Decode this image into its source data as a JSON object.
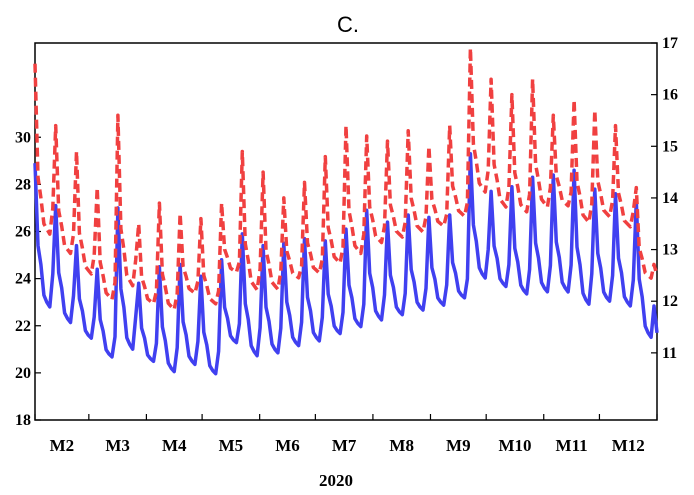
{
  "chart_data": {
    "type": "line",
    "title": "C.",
    "xlabel": "2020",
    "x_ticks": [
      "M2",
      "M3",
      "M4",
      "M5",
      "M6",
      "M7",
      "M8",
      "M9",
      "M10",
      "M11",
      "M12"
    ],
    "xlim_days": [
      31,
      366
    ],
    "left_axis": {
      "ticks": [
        "18",
        "20",
        "22",
        "24",
        "26",
        "28",
        "30"
      ],
      "range": [
        18,
        34
      ]
    },
    "right_axis": {
      "ticks": [
        "11",
        "12",
        "13",
        "14",
        "15",
        "16",
        "17"
      ],
      "range": [
        9.7,
        17
      ]
    },
    "grid": false,
    "series": [
      {
        "axis": "left",
        "color": "#4040f0",
        "style": "solid",
        "pattern": [
          28.9,
          25.4,
          24.6,
          23.3,
          23.0,
          22.8,
          24.2
        ],
        "peaks": [
          28.9,
          27.1,
          25.4,
          24.4,
          27.0,
          23.8,
          24.5,
          24.6,
          24.1,
          24.8,
          25.9,
          25.4,
          25.5,
          25.7,
          25.6,
          26.1,
          26.9,
          26.4,
          26.7,
          26.6,
          26.7,
          29.3,
          27.7,
          27.9,
          28.3,
          28.4,
          28.6,
          27.8,
          27.6,
          27.3
        ],
        "troughs": [
          23.0,
          22.3,
          21.6,
          20.8,
          21.2,
          20.6,
          20.2,
          20.5,
          20.1,
          21.4,
          20.9,
          21.0,
          21.3,
          21.5,
          21.8,
          22.1,
          22.4,
          22.6,
          22.8,
          23.0,
          23.3,
          24.2,
          23.8,
          23.5,
          23.6,
          23.6,
          23.1,
          23.2,
          23.0,
          21.7
        ]
      },
      {
        "axis": "right",
        "color": "#f04040",
        "style": "dashed",
        "pattern": [
          16.6,
          14.4,
          14.0,
          13.5,
          13.4,
          13.3,
          13.8
        ],
        "peaks": [
          16.6,
          15.4,
          14.9,
          14.2,
          15.6,
          13.5,
          13.9,
          13.7,
          13.6,
          13.9,
          14.9,
          14.5,
          14.0,
          14.3,
          14.8,
          15.4,
          15.2,
          15.1,
          15.3,
          15.0,
          15.4,
          16.9,
          16.3,
          16.0,
          16.3,
          15.6,
          15.9,
          15.7,
          15.4,
          14.2
        ],
        "troughs": [
          13.4,
          13.0,
          12.6,
          12.1,
          12.4,
          12.0,
          11.9,
          12.2,
          12.0,
          12.6,
          12.3,
          12.3,
          12.5,
          12.6,
          12.8,
          13.0,
          13.2,
          13.3,
          13.4,
          13.5,
          13.7,
          14.2,
          13.9,
          13.8,
          13.9,
          13.9,
          13.6,
          13.7,
          13.5,
          12.5
        ]
      }
    ]
  }
}
